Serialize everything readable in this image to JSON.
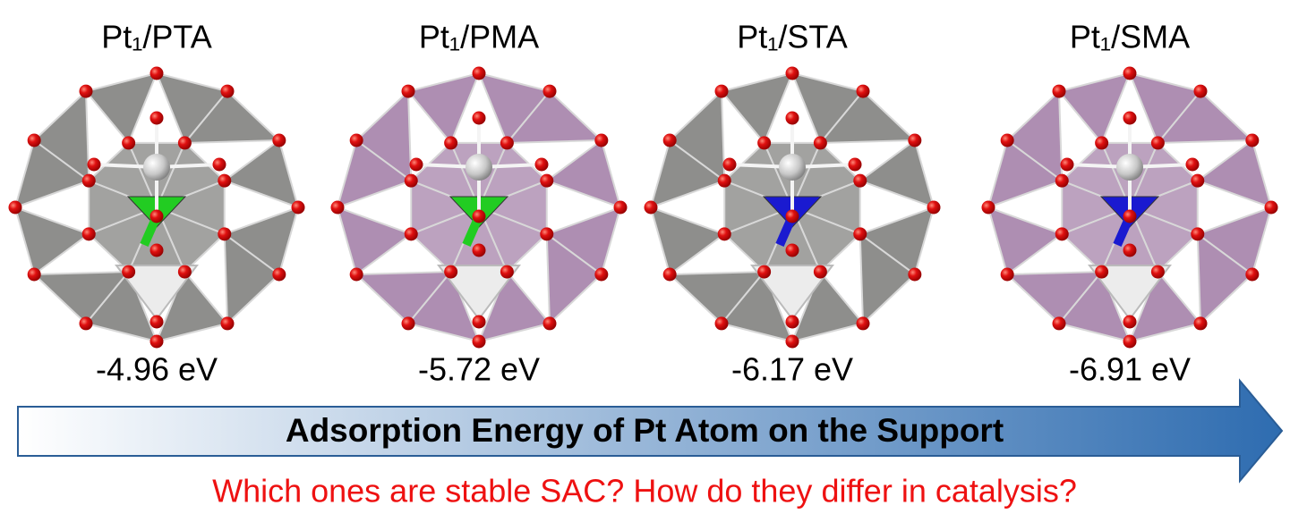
{
  "structures": [
    {
      "label": "Pt₁/PTA",
      "energy": "-4.96 eV",
      "support_color": "#7a7a78",
      "center_color": "#22cc22"
    },
    {
      "label": "Pt₁/PMA",
      "energy": "-5.72 eV",
      "support_color": "#a07aa4",
      "center_color": "#22cc22"
    },
    {
      "label": "Pt₁/STA",
      "energy": "-6.17 eV",
      "support_color": "#7a7a78",
      "center_color": "#1a1ad0"
    },
    {
      "label": "Pt₁/SMA",
      "energy": "-6.91 eV",
      "support_color": "#a07aa4",
      "center_color": "#1a1ad0"
    }
  ],
  "arrow_label": "Adsorption Energy of Pt Atom on the Support",
  "question": "Which ones are stable SAC? How do they differ in catalysis?"
}
